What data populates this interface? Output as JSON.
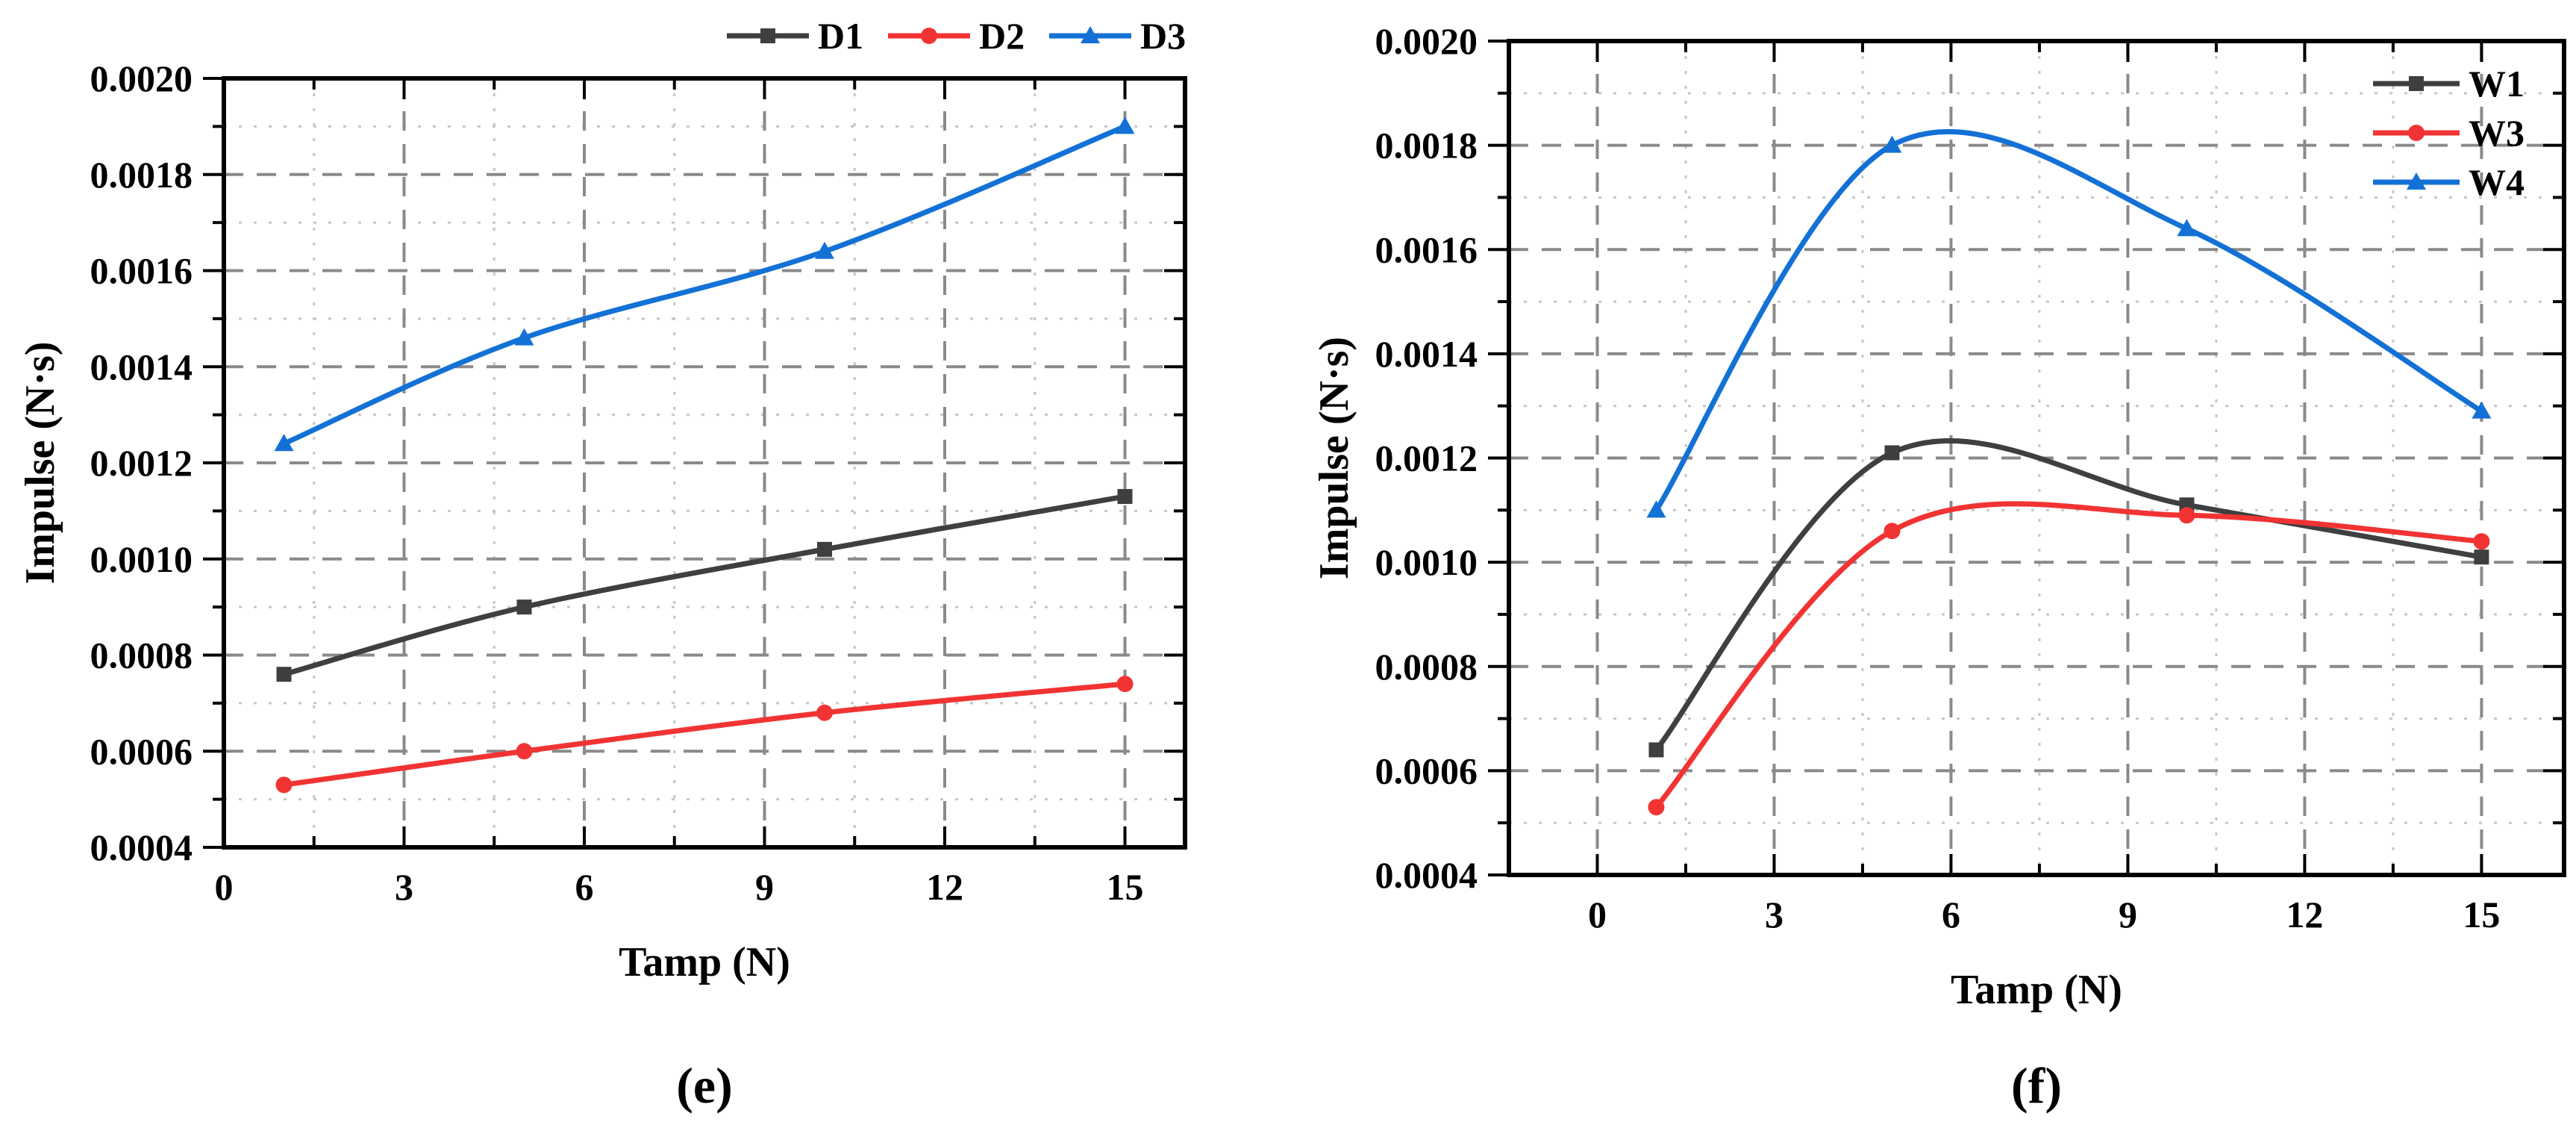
{
  "figure": {
    "background": "#ffffff"
  },
  "captions": {
    "e": "(e)",
    "f": "(f)"
  },
  "grid": {
    "major_color": "#8a8a8a",
    "minor_color": "#c6c6c6",
    "frame_color": "#000000"
  },
  "chart_data": [
    {
      "id": "e",
      "type": "line",
      "caption": "(e)",
      "xlabel": "Tamp (N)",
      "ylabel": "Impulse (N·s)",
      "x_domain": [
        0,
        16
      ],
      "x_ticks": [
        0,
        3,
        6,
        9,
        12,
        15
      ],
      "x_minor_step": 1.5,
      "y_domain": [
        0.0004,
        0.002
      ],
      "y_major_step": 0.0002,
      "y_minor_step": 0.0001,
      "grid": true,
      "legend_position": "top-outside-right",
      "x": [
        1,
        5,
        10,
        15
      ],
      "series": [
        {
          "name": "D1",
          "color": "#3f3f3f",
          "marker": "square",
          "values": [
            0.00076,
            0.0009,
            0.00102,
            0.00113
          ]
        },
        {
          "name": "D2",
          "color": "#f23333",
          "marker": "circle",
          "values": [
            0.00053,
            0.0006,
            0.00068,
            0.00074
          ]
        },
        {
          "name": "D3",
          "color": "#1371d6",
          "marker": "triangle",
          "values": [
            0.00124,
            0.00146,
            0.00164,
            0.0019
          ]
        }
      ]
    },
    {
      "id": "f",
      "type": "line",
      "caption": "(f)",
      "xlabel": "Tamp (N)",
      "ylabel": "Impulse (N·s)",
      "x_domain": [
        -1.5,
        16.4
      ],
      "x_ticks": [
        0,
        3,
        6,
        9,
        12,
        15
      ],
      "x_minor_step": 1.5,
      "y_domain": [
        0.0004,
        0.002
      ],
      "y_major_step": 0.0002,
      "y_minor_step": 0.0001,
      "grid": true,
      "legend_position": "inside-top-right",
      "x": [
        1,
        5,
        10,
        15
      ],
      "series": [
        {
          "name": "W1",
          "color": "#3f3f3f",
          "marker": "square",
          "values": [
            0.00064,
            0.00121,
            0.00111,
            0.00101
          ]
        },
        {
          "name": "W3",
          "color": "#f23333",
          "marker": "circle",
          "values": [
            0.00053,
            0.00106,
            0.00109,
            0.00104
          ]
        },
        {
          "name": "W4",
          "color": "#1371d6",
          "marker": "triangle",
          "values": [
            0.0011,
            0.0018,
            0.00164,
            0.00129
          ]
        }
      ]
    }
  ]
}
